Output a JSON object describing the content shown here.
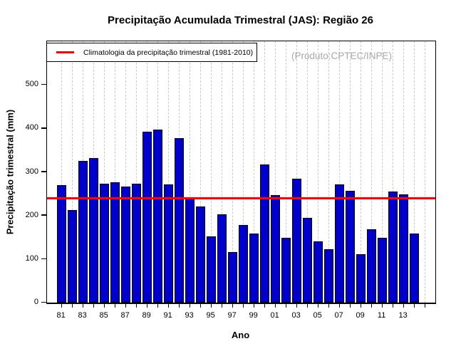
{
  "title": "Precipitação Acumulada Trimestral (JAS): Região 26",
  "watermark": "(Produto:CPTEC/INPE)",
  "legend": {
    "label": "Climatologia da precipitação trimestral (1981-2010)"
  },
  "colors": {
    "bar_fill": "#0000CC",
    "bar_border": "#000000",
    "climatology_line": "#FF0000",
    "gridline": "#C9C9C9",
    "watermark_text": "#A9A9A9"
  },
  "chart_data": {
    "type": "bar",
    "title": "Precipitação Acumulada Trimestral (JAS): Região 26",
    "xlabel": "Ano",
    "ylabel": "Precipitação trimestral (mm)",
    "categories": [
      "1981",
      "1982",
      "1983",
      "1984",
      "1985",
      "1986",
      "1987",
      "1988",
      "1989",
      "1990",
      "1991",
      "1992",
      "1993",
      "1994",
      "1995",
      "1996",
      "1997",
      "1998",
      "1999",
      "2000",
      "2001",
      "2002",
      "2003",
      "2004",
      "2005",
      "2006",
      "2007",
      "2008",
      "2009",
      "2010",
      "2011",
      "2012",
      "2013",
      "2014"
    ],
    "values": [
      270,
      212,
      326,
      332,
      273,
      277,
      267,
      273,
      393,
      397,
      271,
      378,
      239,
      220,
      152,
      202,
      116,
      179,
      159,
      317,
      247,
      148,
      285,
      195,
      140,
      122,
      271,
      257,
      112,
      169,
      149,
      255,
      248,
      159
    ],
    "x_tick_labels": [
      "81",
      "83",
      "85",
      "87",
      "89",
      "91",
      "93",
      "95",
      "97",
      "99",
      "01",
      "03",
      "05",
      "07",
      "09",
      "11",
      "13"
    ],
    "yticks": [
      0,
      100,
      200,
      300,
      400,
      500
    ],
    "ylim": [
      0,
      600
    ],
    "climatology": {
      "label": "Climatologia da precipitação trimestral (1981-2010)",
      "value": 241
    },
    "grid": "vertical-dashed",
    "legend_position": "top-left",
    "bar_color": "#0000CC"
  }
}
